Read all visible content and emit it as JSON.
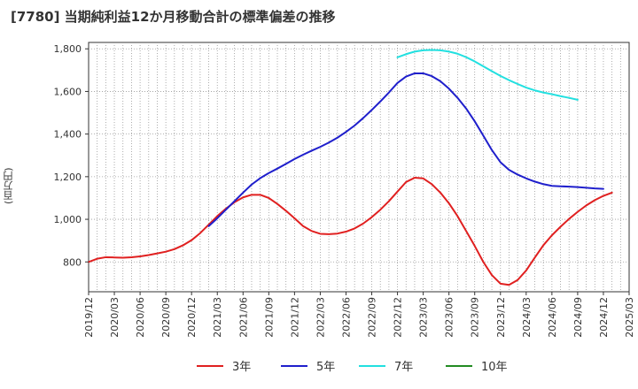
{
  "title": "[7780]  当期純利益12か月移動合計の標準偏差の推移",
  "y_unit": "(百万円)",
  "chart_data": {
    "type": "line",
    "title": "[7780]  当期純利益12か月移動合計の標準偏差の推移",
    "ylabel": "(百万円)",
    "xlabel": "",
    "ylim": [
      660,
      1830
    ],
    "xlim": [
      "2019-12",
      "2025-03"
    ],
    "y_ticks": [
      800,
      1000,
      1200,
      1400,
      1600,
      1800
    ],
    "y_tick_labels": [
      "800",
      "1,000",
      "1,200",
      "1,400",
      "1,600",
      "1,800"
    ],
    "x_tick_labels": [
      "2019/12",
      "2020/03",
      "2020/06",
      "2020/09",
      "2020/12",
      "2021/03",
      "2021/06",
      "2021/09",
      "2021/12",
      "2022/03",
      "2022/06",
      "2022/09",
      "2022/12",
      "2023/03",
      "2023/06",
      "2023/09",
      "2023/12",
      "2024/03",
      "2024/06",
      "2024/09",
      "2024/12",
      "2025/03"
    ],
    "grid": true,
    "legend_position": "bottom",
    "series": [
      {
        "name": "3年",
        "color": "#e02020",
        "points": [
          [
            "2019-12",
            800
          ],
          [
            "2020-01",
            815
          ],
          [
            "2020-02",
            822
          ],
          [
            "2020-03",
            821
          ],
          [
            "2020-04",
            820
          ],
          [
            "2020-05",
            822
          ],
          [
            "2020-06",
            826
          ],
          [
            "2020-07",
            832
          ],
          [
            "2020-08",
            840
          ],
          [
            "2020-09",
            848
          ],
          [
            "2020-10",
            860
          ],
          [
            "2020-11",
            878
          ],
          [
            "2020-12",
            902
          ],
          [
            "2021-01",
            935
          ],
          [
            "2021-02",
            975
          ],
          [
            "2021-03",
            1015
          ],
          [
            "2021-04",
            1050
          ],
          [
            "2021-05",
            1080
          ],
          [
            "2021-06",
            1103
          ],
          [
            "2021-07",
            1115
          ],
          [
            "2021-08",
            1115
          ],
          [
            "2021-09",
            1100
          ],
          [
            "2021-10",
            1072
          ],
          [
            "2021-11",
            1040
          ],
          [
            "2021-12",
            1005
          ],
          [
            "2022-01",
            968
          ],
          [
            "2022-02",
            945
          ],
          [
            "2022-03",
            932
          ],
          [
            "2022-04",
            930
          ],
          [
            "2022-05",
            933
          ],
          [
            "2022-06",
            942
          ],
          [
            "2022-07",
            957
          ],
          [
            "2022-08",
            980
          ],
          [
            "2022-09",
            1010
          ],
          [
            "2022-10",
            1045
          ],
          [
            "2022-11",
            1085
          ],
          [
            "2022-12",
            1130
          ],
          [
            "2023-01",
            1175
          ],
          [
            "2023-02",
            1195
          ],
          [
            "2023-03",
            1192
          ],
          [
            "2023-04",
            1165
          ],
          [
            "2023-05",
            1125
          ],
          [
            "2023-06",
            1075
          ],
          [
            "2023-07",
            1015
          ],
          [
            "2023-08",
            945
          ],
          [
            "2023-09",
            875
          ],
          [
            "2023-10",
            800
          ],
          [
            "2023-11",
            738
          ],
          [
            "2023-12",
            698
          ],
          [
            "2024-01",
            692
          ],
          [
            "2024-02",
            715
          ],
          [
            "2024-03",
            760
          ],
          [
            "2024-04",
            820
          ],
          [
            "2024-05",
            878
          ],
          [
            "2024-06",
            925
          ],
          [
            "2024-07",
            965
          ],
          [
            "2024-08",
            1002
          ],
          [
            "2024-09",
            1035
          ],
          [
            "2024-10",
            1065
          ],
          [
            "2024-11",
            1090
          ],
          [
            "2024-12",
            1110
          ],
          [
            "2025-01",
            1125
          ]
        ]
      },
      {
        "name": "5年",
        "color": "#1f1fcc",
        "points": [
          [
            "2021-02",
            968
          ],
          [
            "2021-03",
            1005
          ],
          [
            "2021-04",
            1045
          ],
          [
            "2021-05",
            1085
          ],
          [
            "2021-06",
            1125
          ],
          [
            "2021-07",
            1163
          ],
          [
            "2021-08",
            1193
          ],
          [
            "2021-09",
            1217
          ],
          [
            "2021-10",
            1238
          ],
          [
            "2021-11",
            1260
          ],
          [
            "2021-12",
            1283
          ],
          [
            "2022-01",
            1303
          ],
          [
            "2022-02",
            1322
          ],
          [
            "2022-03",
            1340
          ],
          [
            "2022-04",
            1360
          ],
          [
            "2022-05",
            1383
          ],
          [
            "2022-06",
            1410
          ],
          [
            "2022-07",
            1440
          ],
          [
            "2022-08",
            1475
          ],
          [
            "2022-09",
            1513
          ],
          [
            "2022-10",
            1553
          ],
          [
            "2022-11",
            1595
          ],
          [
            "2022-12",
            1640
          ],
          [
            "2023-01",
            1670
          ],
          [
            "2023-02",
            1685
          ],
          [
            "2023-03",
            1685
          ],
          [
            "2023-04",
            1672
          ],
          [
            "2023-05",
            1648
          ],
          [
            "2023-06",
            1613
          ],
          [
            "2023-07",
            1570
          ],
          [
            "2023-08",
            1520
          ],
          [
            "2023-09",
            1460
          ],
          [
            "2023-10",
            1393
          ],
          [
            "2023-11",
            1325
          ],
          [
            "2023-12",
            1268
          ],
          [
            "2024-01",
            1232
          ],
          [
            "2024-02",
            1210
          ],
          [
            "2024-03",
            1192
          ],
          [
            "2024-04",
            1177
          ],
          [
            "2024-05",
            1165
          ],
          [
            "2024-06",
            1157
          ],
          [
            "2024-07",
            1155
          ],
          [
            "2024-08",
            1153
          ],
          [
            "2024-09",
            1151
          ],
          [
            "2024-10",
            1148
          ],
          [
            "2024-11",
            1145
          ],
          [
            "2024-12",
            1143
          ]
        ]
      },
      {
        "name": "7年",
        "color": "#22e0e0",
        "points": [
          [
            "2022-12",
            1760
          ],
          [
            "2023-01",
            1775
          ],
          [
            "2023-02",
            1787
          ],
          [
            "2023-03",
            1793
          ],
          [
            "2023-04",
            1795
          ],
          [
            "2023-05",
            1793
          ],
          [
            "2023-06",
            1787
          ],
          [
            "2023-07",
            1777
          ],
          [
            "2023-08",
            1761
          ],
          [
            "2023-09",
            1741
          ],
          [
            "2023-10",
            1718
          ],
          [
            "2023-11",
            1695
          ],
          [
            "2023-12",
            1673
          ],
          [
            "2024-01",
            1653
          ],
          [
            "2024-02",
            1635
          ],
          [
            "2024-03",
            1618
          ],
          [
            "2024-04",
            1605
          ],
          [
            "2024-05",
            1595
          ],
          [
            "2024-06",
            1587
          ],
          [
            "2024-07",
            1578
          ],
          [
            "2024-08",
            1570
          ],
          [
            "2024-09",
            1561
          ]
        ]
      },
      {
        "name": "10年",
        "color": "#228b22",
        "points": []
      }
    ]
  }
}
